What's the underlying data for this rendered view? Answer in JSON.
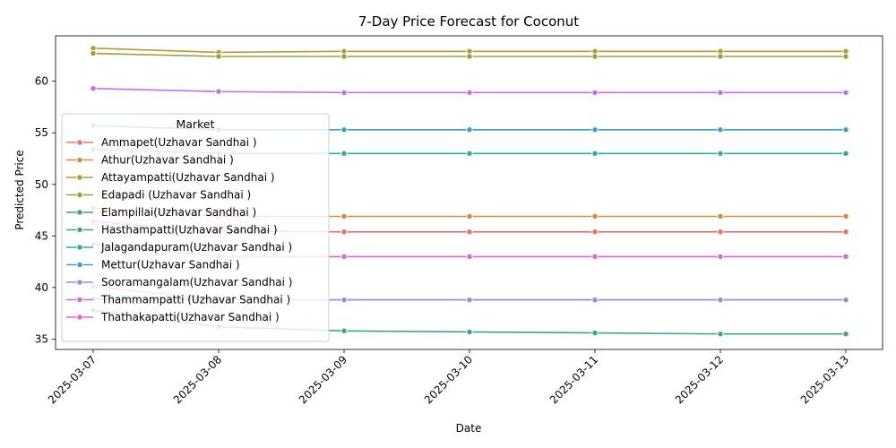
{
  "chart_data": {
    "type": "line",
    "title": "7-Day Price Forecast for Coconut",
    "xlabel": "Date",
    "ylabel": "Predicted Price",
    "x": [
      "2025-03-07",
      "2025-03-08",
      "2025-03-09",
      "2025-03-10",
      "2025-03-11",
      "2025-03-12",
      "2025-03-13"
    ],
    "ylim": [
      34.0,
      64.4
    ],
    "yticks": [
      35,
      40,
      45,
      50,
      55,
      60
    ],
    "grid": false,
    "legend": {
      "title": "Market",
      "placement": "center-left"
    },
    "series": [
      {
        "name": "Ammapet(Uzhavar Sandhai )",
        "color": "#e8736b",
        "values": [
          46.4,
          45.5,
          45.4,
          45.4,
          45.4,
          45.4,
          45.4
        ]
      },
      {
        "name": "Athur(Uzhavar Sandhai )",
        "color": "#d98a3a",
        "values": [
          47.7,
          46.9,
          46.9,
          46.9,
          46.9,
          46.9,
          46.9
        ]
      },
      {
        "name": "Attayampatti(Uzhavar Sandhai )",
        "color": "#b59a37",
        "values": [
          63.2,
          62.8,
          62.9,
          62.9,
          62.9,
          62.9,
          62.9
        ]
      },
      {
        "name": "Edapadi (Uzhavar Sandhai )",
        "color": "#8fa63a",
        "values": [
          62.7,
          62.4,
          62.4,
          62.4,
          62.4,
          62.4,
          62.4
        ]
      },
      {
        "name": "Elampillai(Uzhavar Sandhai )",
        "color": "#3aa95e",
        "values": [
          38.9,
          38.8,
          38.8,
          38.8,
          38.8,
          38.8,
          38.8
        ]
      },
      {
        "name": "Hasthampatti(Uzhavar Sandhai )",
        "color": "#3aa78b",
        "values": [
          37.8,
          36.2,
          35.8,
          35.7,
          35.6,
          35.5,
          35.5
        ]
      },
      {
        "name": "Jalagandapuram(Uzhavar Sandhai )",
        "color": "#37a9a6",
        "values": [
          53.4,
          53.0,
          53.0,
          53.0,
          53.0,
          53.0,
          53.0
        ]
      },
      {
        "name": "Mettur(Uzhavar Sandhai )",
        "color": "#3aa0c9",
        "values": [
          55.7,
          55.3,
          55.3,
          55.3,
          55.3,
          55.3,
          55.3
        ]
      },
      {
        "name": "Sooramangalam(Uzhavar Sandhai )",
        "color": "#8e90e6",
        "values": [
          40.1,
          38.8,
          38.8,
          38.8,
          38.8,
          38.8,
          38.8
        ]
      },
      {
        "name": "Thammampatti (Uzhavar Sandhai )",
        "color": "#c56ee6",
        "values": [
          59.3,
          59.0,
          58.9,
          58.9,
          58.9,
          58.9,
          58.9
        ]
      },
      {
        "name": "Thathakapatti(Uzhavar Sandhai )",
        "color": "#ea65c2",
        "values": [
          44.2,
          43.0,
          43.0,
          43.0,
          43.0,
          43.0,
          43.0
        ]
      }
    ]
  }
}
